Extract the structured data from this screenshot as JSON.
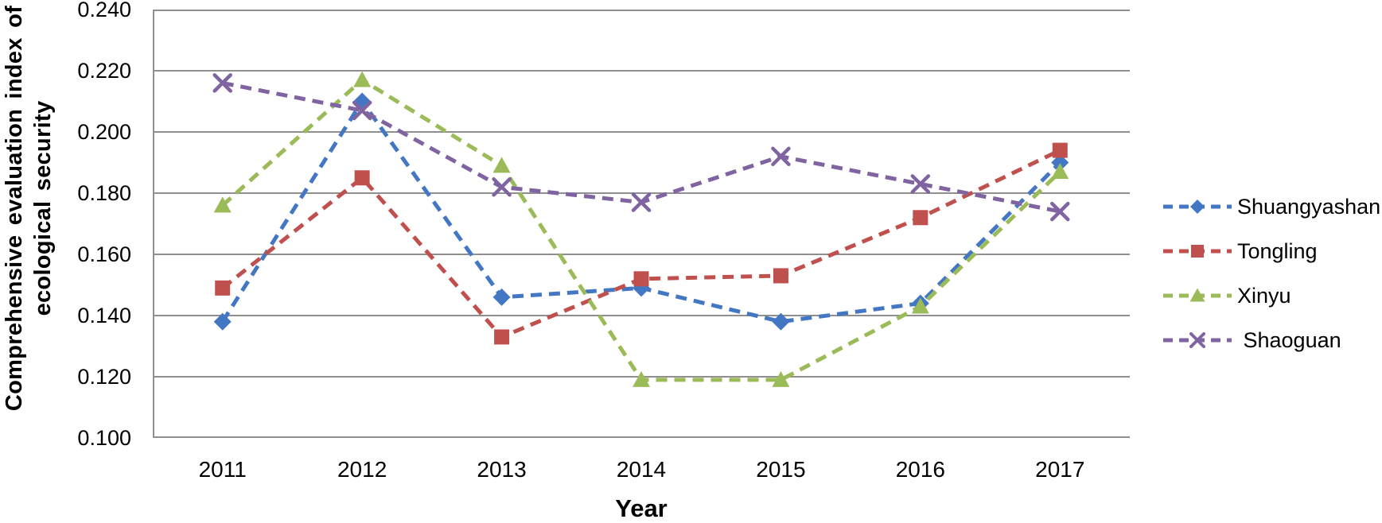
{
  "chart_data": {
    "type": "line",
    "title": "",
    "x": [
      "2011",
      "2012",
      "2013",
      "2014",
      "2015",
      "2016",
      "2017"
    ],
    "xlabel": "Year",
    "ylabel": "Comprehensive evaluation index of ecological security",
    "ylabel_lines": [
      "Comprehensive evaluation index of",
      "ecological security"
    ],
    "ylim": [
      0.1,
      0.24
    ],
    "ytick_interval": 0.02,
    "ytick_labels": [
      "0.240",
      "0.220",
      "0.200",
      "0.180",
      "0.160",
      "0.140",
      "0.120",
      "0.100"
    ],
    "grid": true,
    "grid_color": "#8f8f8f",
    "axis_color": "#8f8f8f",
    "line_style": "dashed",
    "legend_position": "right",
    "series": [
      {
        "name": "Shuangyashan",
        "color": "#4377C4",
        "marker": "diamond",
        "values": [
          0.138,
          0.21,
          0.146,
          0.149,
          0.138,
          0.144,
          0.19
        ]
      },
      {
        "name": "Tongling",
        "color": "#C0504D",
        "marker": "square",
        "values": [
          0.149,
          0.185,
          0.133,
          0.152,
          0.153,
          0.172,
          0.194
        ]
      },
      {
        "name": "Xinyu",
        "color": "#9BBB59",
        "marker": "triangle",
        "values": [
          0.176,
          0.217,
          0.189,
          0.119,
          0.119,
          0.143,
          0.187
        ]
      },
      {
        "name": "Shaoguan",
        "color": "#8064A2",
        "marker": "x",
        "values": [
          0.216,
          0.207,
          0.182,
          0.177,
          0.192,
          0.183,
          0.174
        ]
      }
    ],
    "legend_labels": [
      "Shuangyashan",
      "Tongling",
      "Xinyu",
      " Shaoguan"
    ]
  }
}
